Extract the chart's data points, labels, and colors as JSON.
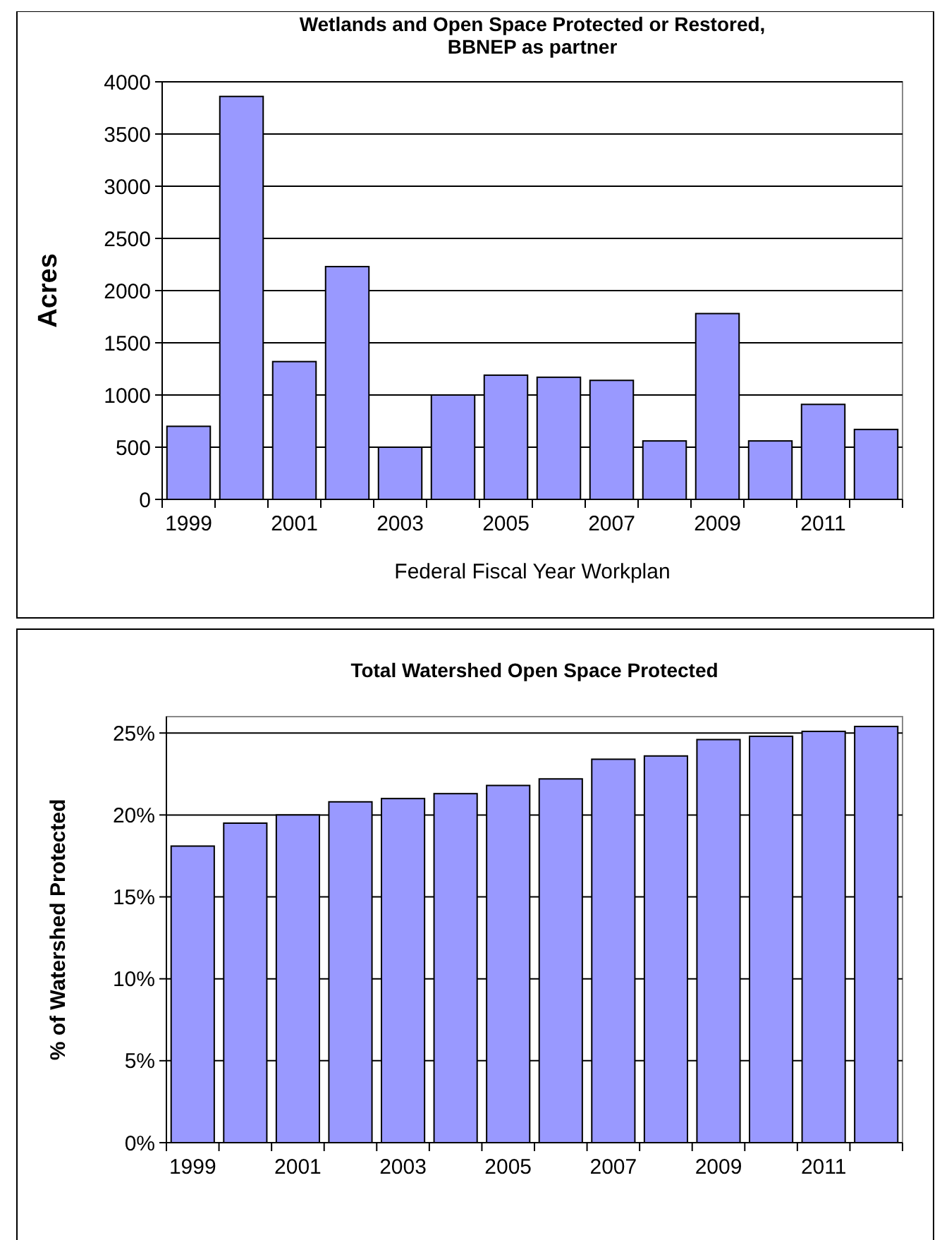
{
  "chart_data": [
    {
      "type": "bar",
      "title": "Wetlands and Open Space Protected or Restored,\nBBNEP as partner",
      "xlabel": "Federal Fiscal Year Workplan",
      "ylabel": "Acres",
      "categories": [
        "1999",
        null,
        "2001",
        null,
        "2003",
        null,
        "2005",
        null,
        "2007",
        null,
        "2009",
        null,
        "2011",
        null
      ],
      "values": [
        700,
        3860,
        1320,
        2230,
        500,
        1000,
        1190,
        1170,
        1140,
        560,
        1780,
        560,
        910,
        670
      ],
      "color": "#9999ff",
      "ylim": [
        0,
        4000
      ],
      "yticks": [
        0,
        500,
        1000,
        1500,
        2000,
        2500,
        3000,
        3500,
        4000
      ],
      "grid": "y"
    },
    {
      "type": "bar",
      "title": "Total Watershed Open Space Protected",
      "ylabel": "% of Watershed Protected",
      "categories": [
        "1999",
        null,
        "2001",
        null,
        "2003",
        null,
        "2005",
        null,
        "2007",
        null,
        "2009",
        null,
        "2011",
        null
      ],
      "values": [
        18.1,
        19.5,
        20.0,
        20.8,
        21.0,
        21.3,
        21.8,
        22.2,
        23.4,
        23.6,
        24.6,
        24.8,
        25.1,
        25.4
      ],
      "color": "#9999ff",
      "ylim": [
        0,
        26
      ],
      "yticks": [
        {
          "value": 0,
          "label": "0%"
        },
        {
          "value": 5,
          "label": "5%"
        },
        {
          "value": 10,
          "label": "10%"
        },
        {
          "value": 15,
          "label": "15%"
        },
        {
          "value": 20,
          "label": "20%"
        },
        {
          "value": 25,
          "label": "25%"
        }
      ],
      "grid": "y"
    }
  ]
}
